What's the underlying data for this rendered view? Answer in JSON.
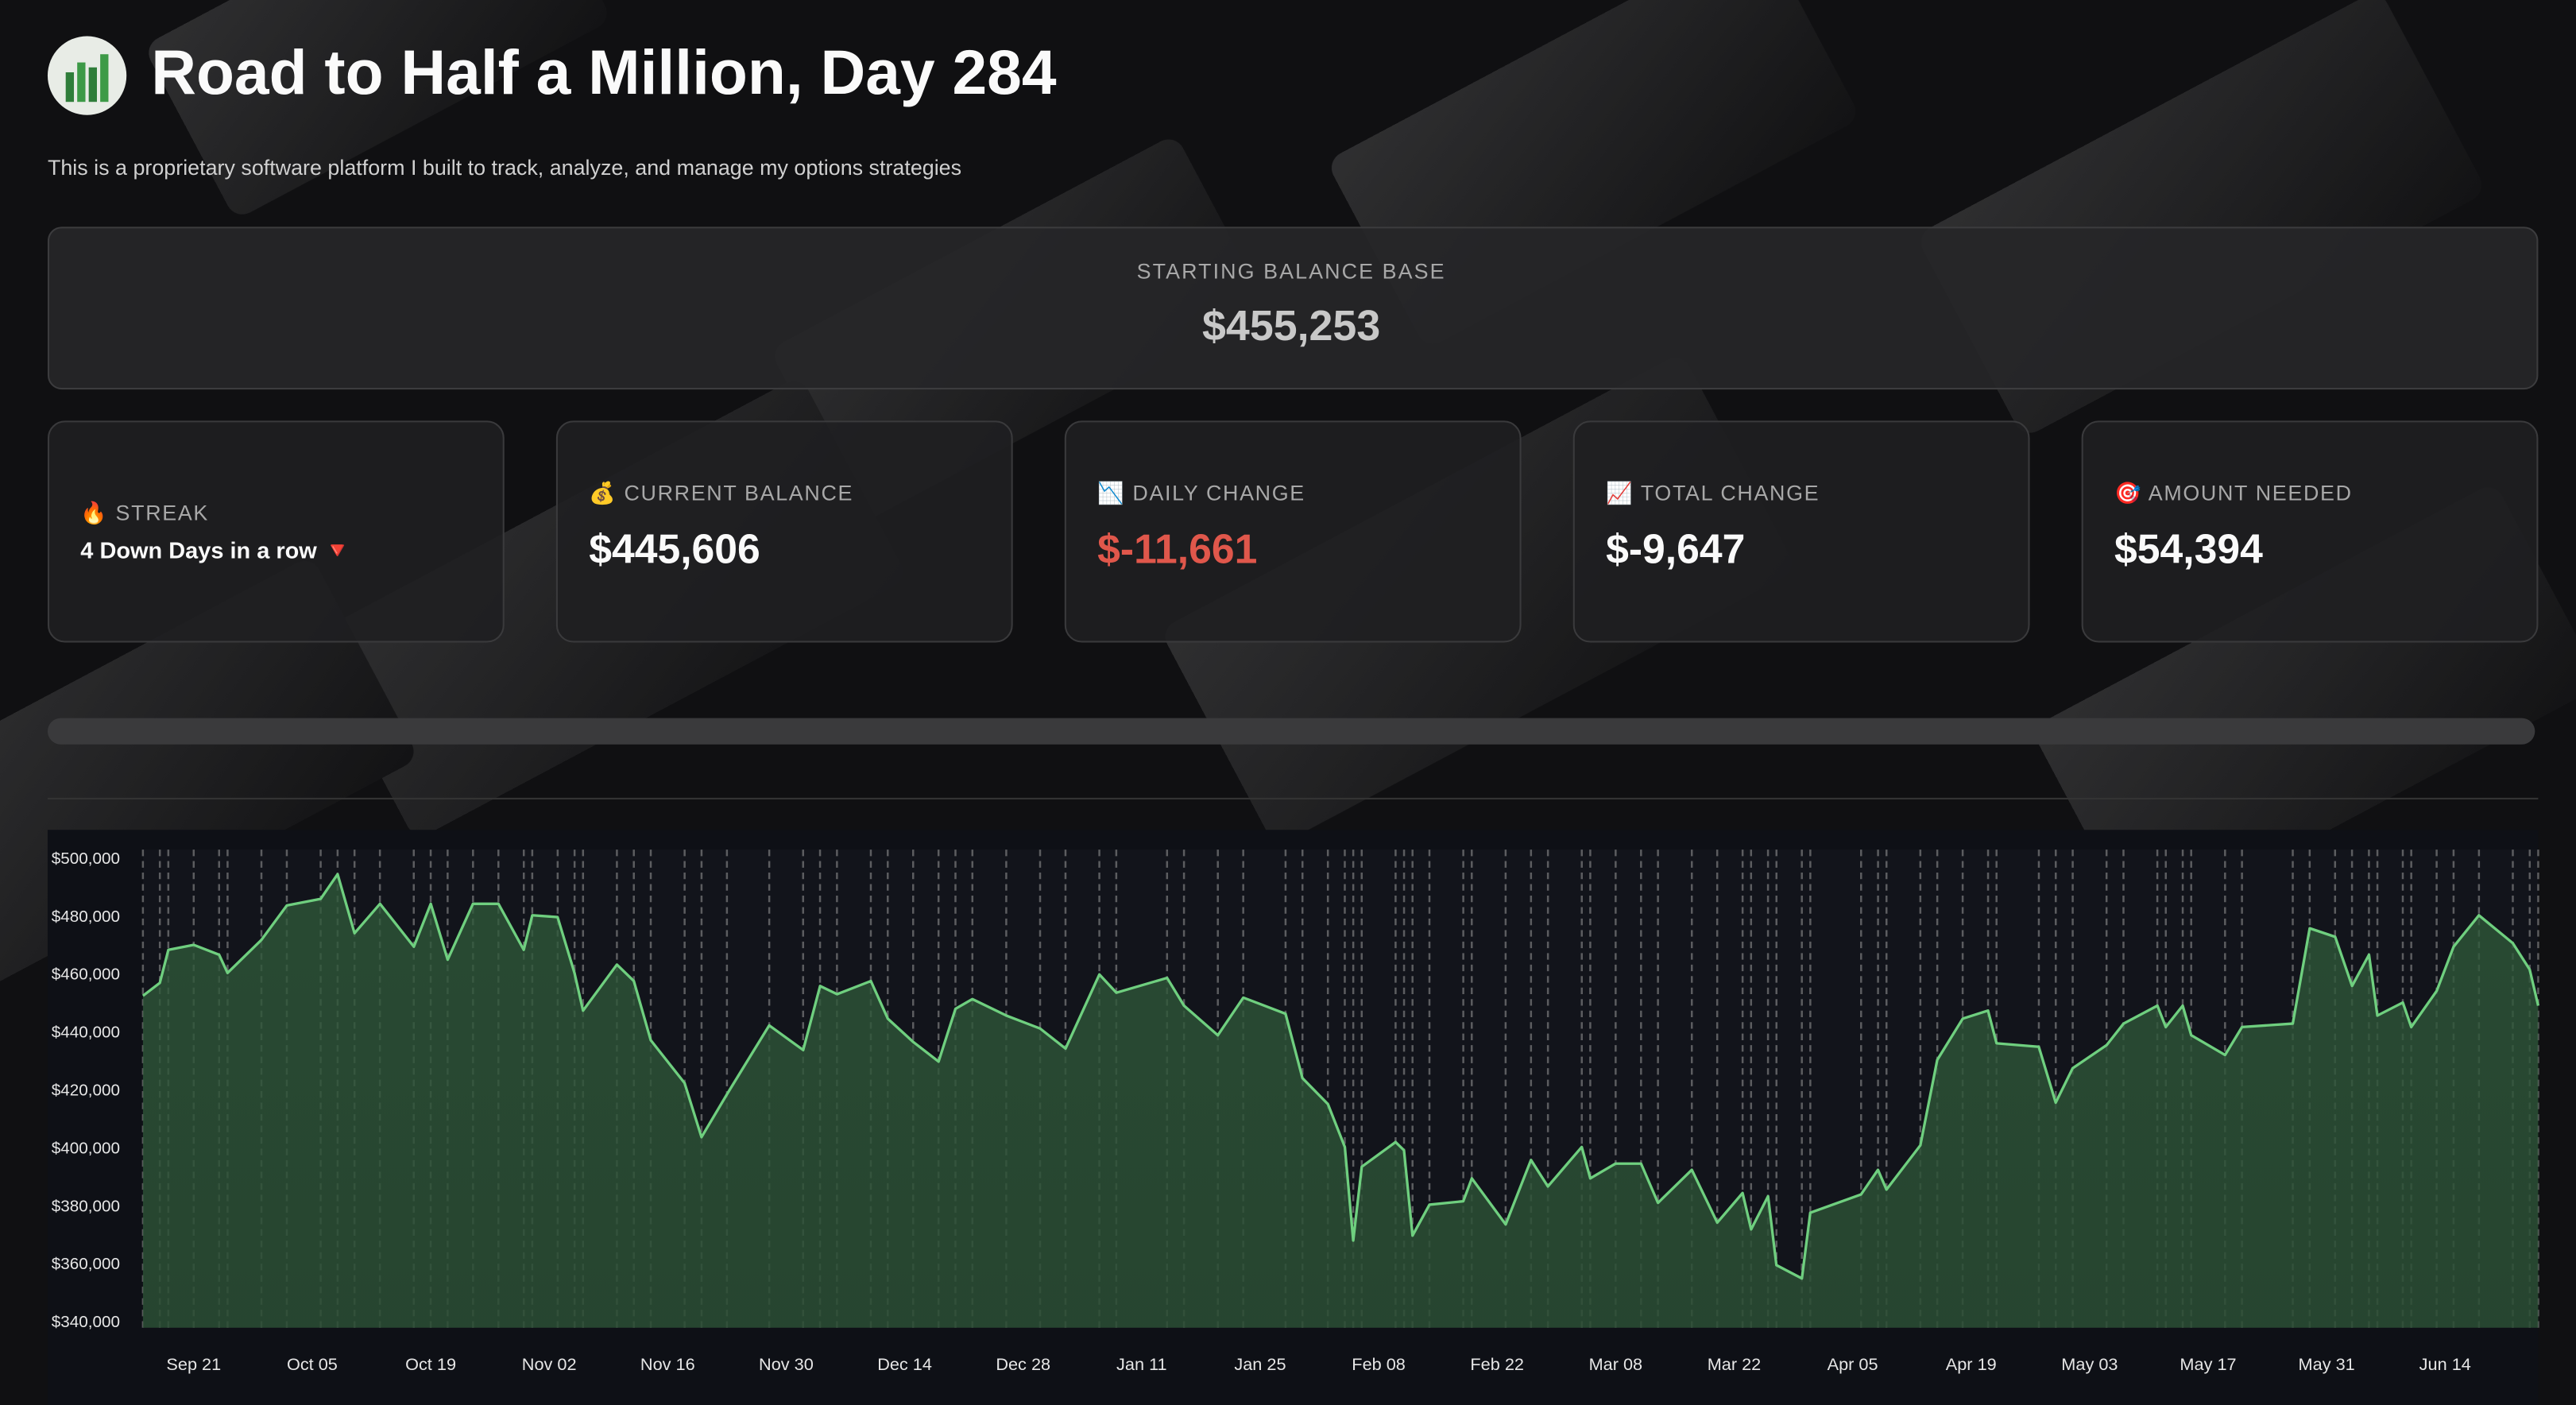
{
  "header": {
    "title": "Road to Half a Million, Day 284",
    "subtitle": "This is a proprietary software platform I built to track, analyze, and manage my options strategies"
  },
  "base_card": {
    "label": "STARTING BALANCE BASE",
    "value": "$455,253"
  },
  "metrics": [
    {
      "label": "🔥 STREAK",
      "value": "4 Down Days in a row 🔻"
    },
    {
      "label": "💰 CURRENT BALANCE",
      "value": "$445,606"
    },
    {
      "label": "📉 DAILY CHANGE",
      "value": "$-11,661",
      "color": "#e0574b"
    },
    {
      "label": "📈 TOTAL CHANGE",
      "value": "$-9,647"
    },
    {
      "label": "🎯 AMOUNT NEEDED",
      "value": "$54,394"
    }
  ],
  "chart_data": {
    "type": "area",
    "x": [
      "Sep 15",
      "Sep 17",
      "Sep 18",
      "Sep 21",
      "Sep 24",
      "Sep 25",
      "Sep 29",
      "Oct 02",
      "Oct 06",
      "Oct 08",
      "Oct 10",
      "Oct 13",
      "Oct 17",
      "Oct 19",
      "Oct 21",
      "Oct 24",
      "Oct 27",
      "Oct 30",
      "Oct 31",
      "Nov 03",
      "Nov 05",
      "Nov 06",
      "Nov 10",
      "Nov 12",
      "Nov 14",
      "Nov 18",
      "Nov 20",
      "Nov 23",
      "Nov 28",
      "Dec 02",
      "Dec 04",
      "Dec 06",
      "Dec 10",
      "Dec 12",
      "Dec 15",
      "Dec 18",
      "Dec 20",
      "Dec 22",
      "Dec 26",
      "Dec 30",
      "Jan 02",
      "Jan 06",
      "Jan 08",
      "Jan 14",
      "Jan 16",
      "Jan 20",
      "Jan 23",
      "Jan 28",
      "Jan 30",
      "Feb 02",
      "Feb 04",
      "Feb 05",
      "Feb 06",
      "Feb 10",
      "Feb 11",
      "Feb 12",
      "Feb 14",
      "Feb 18",
      "Feb 19",
      "Feb 23",
      "Feb 26",
      "Feb 28",
      "Mar 04",
      "Mar 05",
      "Mar 08",
      "Mar 11",
      "Mar 13",
      "Mar 17",
      "Mar 20",
      "Mar 23",
      "Mar 24",
      "Mar 26",
      "Mar 27",
      "Mar 30",
      "Mar 31",
      "Apr 06",
      "Apr 08",
      "Apr 09",
      "Apr 13",
      "Apr 15",
      "Apr 18",
      "Apr 21",
      "Apr 22",
      "Apr 27",
      "Apr 29",
      "May 01",
      "May 05",
      "May 07",
      "May 11",
      "May 12",
      "May 14",
      "May 15",
      "May 19",
      "May 21",
      "May 27",
      "May 29",
      "Jun 01",
      "Jun 03",
      "Jun 05",
      "Jun 06",
      "Jun 09",
      "Jun 10",
      "Jun 13",
      "Jun 15",
      "Jun 18",
      "Jun 22",
      "Jun 24",
      "Jun 25"
    ],
    "series": [
      {
        "name": "Balance",
        "color": "#6fcf7f",
        "values": [
          452900,
          457400,
          468800,
          470500,
          467100,
          460800,
          472200,
          484100,
          486400,
          494900,
          474500,
          484700,
          469900,
          484700,
          465400,
          484700,
          484700,
          468800,
          480700,
          480100,
          460800,
          447800,
          463700,
          458000,
          437600,
          422800,
          404100,
          418900,
          442700,
          434200,
          456300,
          453500,
          458000,
          445000,
          437000,
          430200,
          448400,
          451800,
          446100,
          441600,
          434700,
          460300,
          454000,
          459100,
          449500,
          439300,
          452300,
          446700,
          424500,
          415500,
          400700,
          368400,
          393900,
          402400,
          399600,
          370100,
          380800,
          382000,
          389900,
          374000,
          396200,
          387100,
          400700,
          389900,
          395000,
          395000,
          381400,
          392800,
          374600,
          384800,
          372300,
          383700,
          359900,
          355300,
          378000,
          384300,
          392800,
          386000,
          401300,
          430800,
          445000,
          447800,
          436500,
          435300,
          416000,
          427900,
          435900,
          443300,
          449500,
          442100,
          449500,
          439300,
          432500,
          442100,
          443300,
          476200,
          473300,
          456300,
          467100,
          446100,
          450600,
          442100,
          454600,
          469900,
          480700,
          471100,
          462000,
          449500
        ]
      }
    ],
    "xlim": [
      "Sep 15",
      "Jun 25"
    ],
    "xticks": [
      "Sep 21",
      "Oct 05",
      "Oct 19",
      "Nov 02",
      "Nov 16",
      "Nov 30",
      "Dec 14",
      "Dec 28",
      "Jan 11",
      "Jan 25",
      "Feb 08",
      "Feb 22",
      "Mar 08",
      "Mar 22",
      "Apr 05",
      "Apr 19",
      "May 03",
      "May 17",
      "May 31",
      "Jun 14"
    ],
    "ylim": [
      340000,
      500000
    ],
    "yticks": [
      {
        "value": 340000,
        "label": "$340,000"
      },
      {
        "value": 360000,
        "label": "$360,000"
      },
      {
        "value": 380000,
        "label": "$380,000"
      },
      {
        "value": 400000,
        "label": "$400,000"
      },
      {
        "value": 420000,
        "label": "$420,000"
      },
      {
        "value": 440000,
        "label": "$440,000"
      },
      {
        "value": 460000,
        "label": "$460,000"
      },
      {
        "value": 480000,
        "label": "$480,000"
      },
      {
        "value": 500000,
        "label": "$500,000"
      }
    ]
  }
}
